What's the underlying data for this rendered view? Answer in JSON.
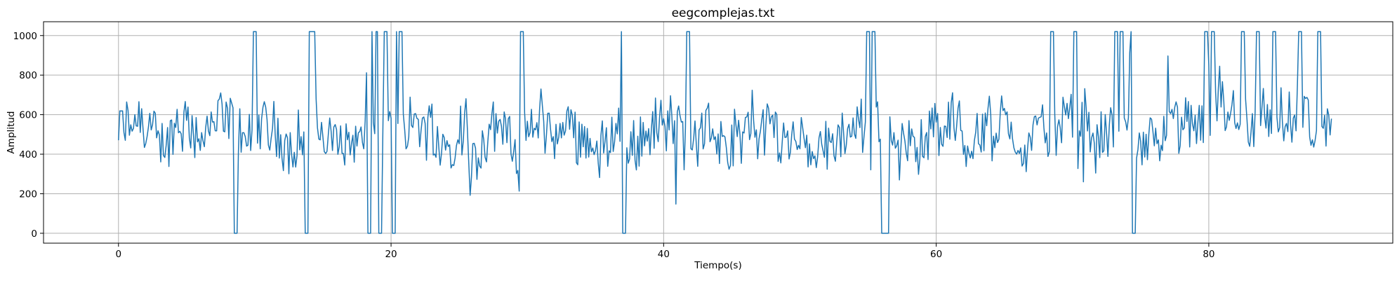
{
  "chart_data": {
    "type": "line",
    "title": "eegcomplejas.txt",
    "xlabel": "Tiempo(s)",
    "ylabel": "Amplitud",
    "xlim": [
      -5.5,
      93.5
    ],
    "ylim": [
      -50,
      1070
    ],
    "xticks": [
      0,
      20,
      40,
      60,
      80
    ],
    "yticks": [
      0,
      200,
      400,
      600,
      800,
      1000
    ],
    "grid": true,
    "line_color": "#1f77b4",
    "series": [
      {
        "x_start": 0,
        "x_end": 89,
        "sample_step": 0.1,
        "baseline": 500,
        "typical_range": [
          350,
          700
        ],
        "clip_min": 0,
        "clip_max": 1020,
        "saturation_spikes_high": [
          10,
          14,
          14.3,
          18.5,
          19,
          19.6,
          20.3,
          20.7,
          29.6,
          37,
          41.8,
          55,
          55.4,
          56.2,
          68.5,
          70.2,
          73.2,
          73.6,
          74.4,
          79.8,
          80.3,
          82.5,
          83.6,
          84.8,
          86.7,
          88.1
        ],
        "saturation_spikes_low": [
          8.6,
          13.8,
          18.4,
          19.2,
          20.2,
          37.1,
          56.1,
          56.4,
          74.5
        ]
      }
    ]
  }
}
